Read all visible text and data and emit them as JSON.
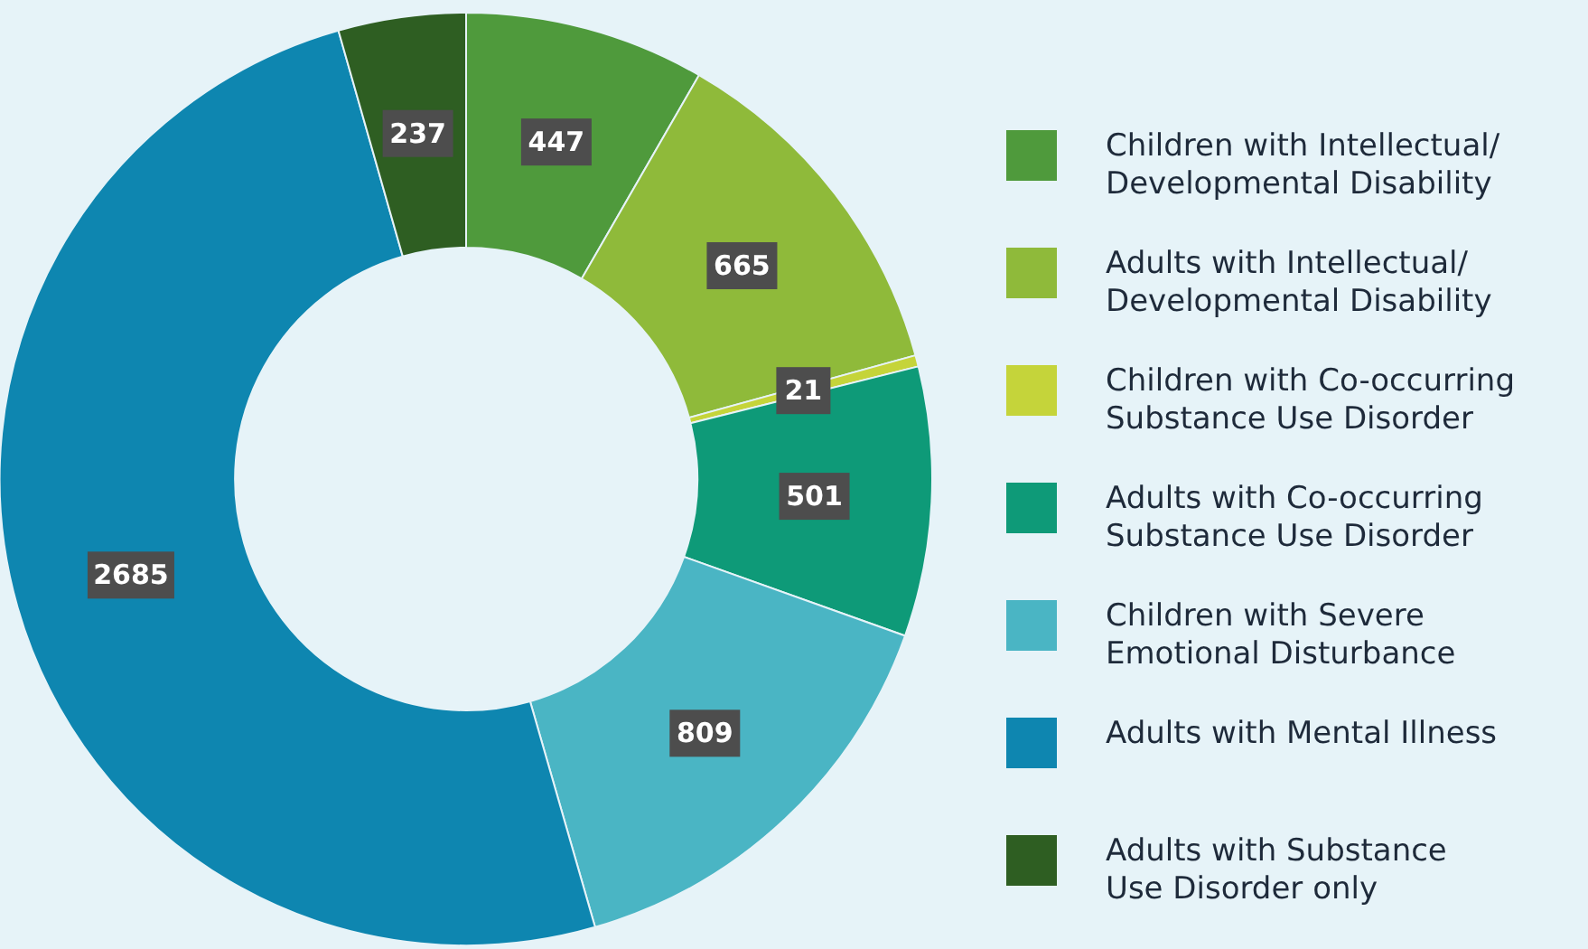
{
  "chart_data": {
    "type": "donut",
    "categories": [
      "Children with Intellectual/\nDevelopmental Disability",
      "Adults with Intellectual/\nDevelopmental Disability",
      "Children with Co-occurring\nSubstance Use Disorder",
      "Adults with Co-occurring\nSubstance Use Disorder",
      "Children with Severe\nEmotional Disturbance",
      "Adults with Mental Illness",
      "Adults with Substance\nUse Disorder only"
    ],
    "values": [
      447,
      665,
      21,
      501,
      809,
      2685,
      237
    ],
    "colors": [
      "#4f9a3c",
      "#8fba3a",
      "#c5d43a",
      "#0e9a78",
      "#4ab5c4",
      "#0e86b0",
      "#2e5e22"
    ],
    "data_labels": true,
    "legend": "right"
  }
}
